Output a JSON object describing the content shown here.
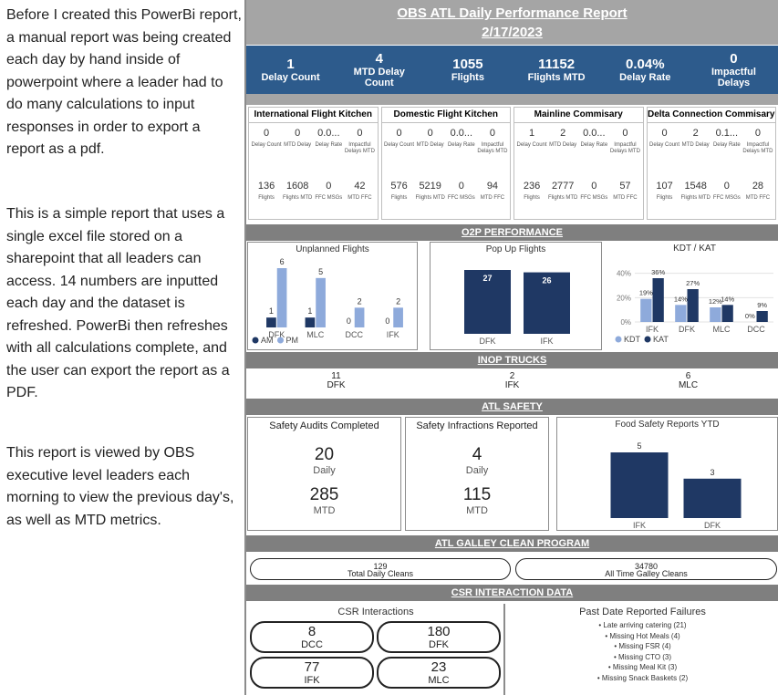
{
  "description": [
    "Before I created this PowerBi report, a manual report was being created each day by hand inside of powerpoint where a leader had to do many calculations to input responses in order to export a report as a pdf.",
    "This is a simple report that uses a single excel file stored on a sharepoint that all leaders can access. 14 numbers are inputted each day and the dataset is refreshed. PowerBi then refreshes with all calculations complete, and the user can export the report as a PDF.",
    "This report is viewed by OBS executive level leaders each morning to view the previous day's, as well as MTD metrics."
  ],
  "header": {
    "title": "OBS ATL Daily Performance Report",
    "date": "2/17/2023"
  },
  "kpis": [
    {
      "value": "1",
      "label": "Delay Count"
    },
    {
      "value": "4",
      "label": "MTD Delay Count"
    },
    {
      "value": "1055",
      "label": "Flights"
    },
    {
      "value": "11152",
      "label": "Flights MTD"
    },
    {
      "value": "0.04%",
      "label": "Delay Rate"
    },
    {
      "value": "0",
      "label": "Impactful Delays"
    }
  ],
  "kitchens": [
    {
      "name": "International Flight Kitchen",
      "metrics": [
        {
          "value": "0",
          "label": "Delay Count"
        },
        {
          "value": "0",
          "label": "MTD Delay"
        },
        {
          "value": "0.0...",
          "label": "Delay Rate"
        },
        {
          "value": "0",
          "label": "Impactful Delays MTD"
        },
        {
          "value": "136",
          "label": "Flights"
        },
        {
          "value": "1608",
          "label": "Flights MTD"
        },
        {
          "value": "0",
          "label": "FFC MSGs"
        },
        {
          "value": "42",
          "label": "MTD FFC"
        }
      ]
    },
    {
      "name": "Domestic Flight Kitchen",
      "metrics": [
        {
          "value": "0",
          "label": "Delay Count"
        },
        {
          "value": "0",
          "label": "MTD Delay"
        },
        {
          "value": "0.0...",
          "label": "Delay Rate"
        },
        {
          "value": "0",
          "label": "Impactful Delays MTD"
        },
        {
          "value": "576",
          "label": "Flights"
        },
        {
          "value": "5219",
          "label": "Flights MTD"
        },
        {
          "value": "0",
          "label": "FFC MSGs"
        },
        {
          "value": "94",
          "label": "MTD FFC"
        }
      ]
    },
    {
      "name": "Mainline Commisary",
      "metrics": [
        {
          "value": "1",
          "label": "Delay Count"
        },
        {
          "value": "2",
          "label": "MTD Delay"
        },
        {
          "value": "0.0...",
          "label": "Delay Rate"
        },
        {
          "value": "0",
          "label": "Impactful Delays MTD"
        },
        {
          "value": "236",
          "label": "Flights"
        },
        {
          "value": "2777",
          "label": "Flights MTD"
        },
        {
          "value": "0",
          "label": "FFC MSGs"
        },
        {
          "value": "57",
          "label": "MTD FFC"
        }
      ]
    },
    {
      "name": "Delta Connection Commisary",
      "metrics": [
        {
          "value": "0",
          "label": "Delay Count"
        },
        {
          "value": "2",
          "label": "MTD Delay"
        },
        {
          "value": "0.1...",
          "label": "Delay Rate"
        },
        {
          "value": "0",
          "label": "Impactful Delays MTD"
        },
        {
          "value": "107",
          "label": "Flights"
        },
        {
          "value": "1548",
          "label": "Flights MTD"
        },
        {
          "value": "0",
          "label": "FFC MSGs"
        },
        {
          "value": "28",
          "label": "MTD FFC"
        }
      ]
    }
  ],
  "sections": {
    "o2p": "O2P PERFORMANCE",
    "inop": "INOP TRUCKS",
    "safety": "ATL SAFETY",
    "galley": "ATL GALLEY CLEAN PROGRAM",
    "csr": "CSR INTERACTION DATA"
  },
  "charts": {
    "unplanned": {
      "type": "bar",
      "title": "Unplanned Flights",
      "categories": [
        "DFK",
        "MLC",
        "DCC",
        "IFK"
      ],
      "series": [
        {
          "name": "AM",
          "color": "#1f3864",
          "values": [
            1,
            1,
            0,
            0
          ]
        },
        {
          "name": "PM",
          "color": "#8eaadb",
          "values": [
            6,
            5,
            2,
            2
          ]
        }
      ]
    },
    "popup": {
      "type": "bar",
      "title": "Pop Up Flights",
      "categories": [
        "DFK",
        "IFK"
      ],
      "values": [
        27,
        26
      ],
      "color": "#1f3864"
    },
    "kdt": {
      "type": "bar",
      "title": "KDT / KAT",
      "categories": [
        "IFK",
        "DFK",
        "MLC",
        "DCC"
      ],
      "series": [
        {
          "name": "KDT",
          "color": "#8eaadb",
          "values": [
            19,
            14,
            12,
            0
          ],
          "value_labels": [
            "19%",
            "14%",
            "12%",
            "0%"
          ]
        },
        {
          "name": "KAT",
          "color": "#1f3864",
          "values": [
            36,
            27,
            14,
            9
          ],
          "value_labels": [
            "36%",
            "27%",
            "14%",
            "9%"
          ]
        }
      ],
      "ylim": [
        0,
        45
      ],
      "yticks": [
        {
          "value": 0,
          "label": "0%"
        },
        {
          "value": 20,
          "label": "20%"
        },
        {
          "value": 40,
          "label": "40%"
        }
      ],
      "grid": true
    },
    "food": {
      "type": "bar",
      "title": "Food Safety Reports YTD",
      "categories": [
        "IFK",
        "DFK"
      ],
      "values": [
        5,
        3
      ],
      "color": "#1f3864"
    }
  },
  "inop": [
    {
      "value": "11",
      "label": "DFK"
    },
    {
      "value": "2",
      "label": "IFK"
    },
    {
      "value": "6",
      "label": "MLC"
    }
  ],
  "safety": [
    {
      "title": "Safety Audits Completed",
      "daily": "20",
      "daily_label": "Daily",
      "mtd": "285",
      "mtd_label": "MTD"
    },
    {
      "title": "Safety Infractions Reported",
      "daily": "4",
      "daily_label": "Daily",
      "mtd": "115",
      "mtd_label": "MTD"
    }
  ],
  "galley": [
    {
      "value": "129",
      "label": "Total Daily Cleans"
    },
    {
      "value": "34780",
      "label": "All Time Galley Cleans"
    }
  ],
  "csr": {
    "title": "CSR Interactions",
    "items": [
      {
        "value": "8",
        "label": "DCC"
      },
      {
        "value": "180",
        "label": "DFK"
      },
      {
        "value": "77",
        "label": "IFK"
      },
      {
        "value": "23",
        "label": "MLC"
      }
    ]
  },
  "failures": {
    "title": "Past Date Reported Failures",
    "items": [
      "• Late arriving catering (21)",
      "• Missing Hot Meals (4)",
      "• Missing FSR (4)",
      "• Missing CTO (3)",
      "• Missing Meal Kit (3)",
      "• Missing Snack Baskets (2)"
    ]
  }
}
